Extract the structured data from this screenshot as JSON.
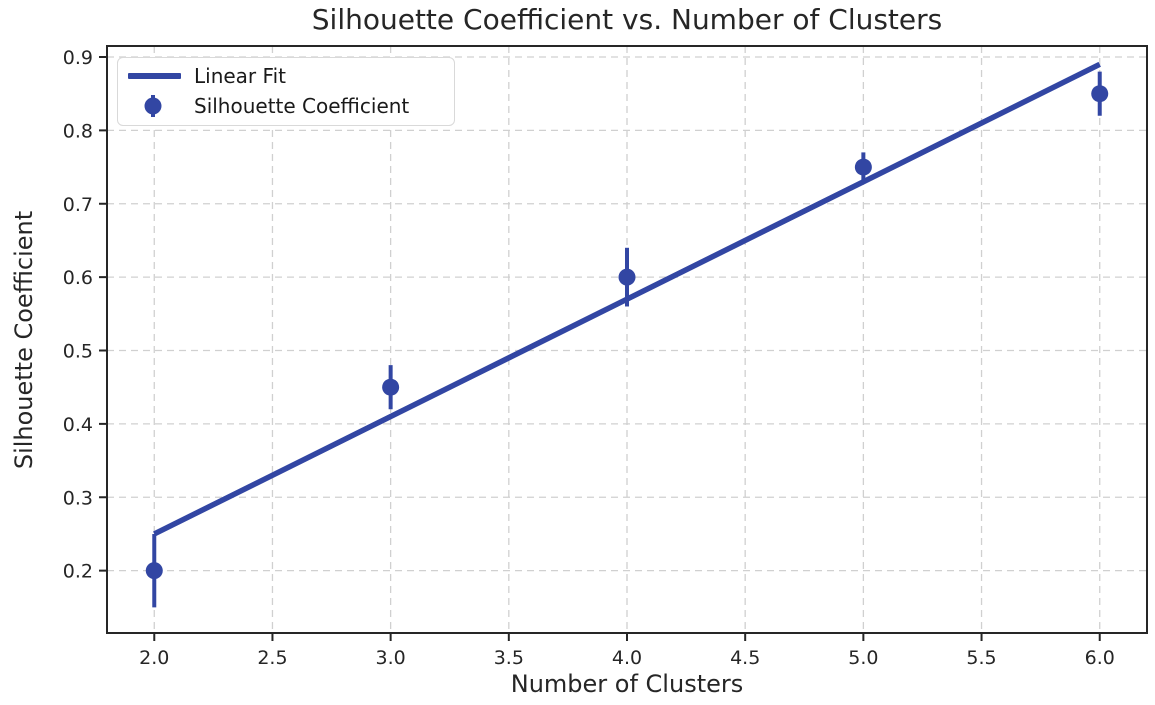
{
  "chart_data": {
    "type": "scatter",
    "title": "Silhouette Coefficient vs. Number of Clusters",
    "xlabel": "Number of Clusters",
    "ylabel": "Silhouette Coefficient",
    "series": [
      {
        "name": "Linear Fit",
        "style": "line",
        "x": [
          2.0,
          6.0
        ],
        "y": [
          0.25,
          0.89
        ]
      },
      {
        "name": "Silhouette Coefficient",
        "style": "scatter-errorbar",
        "x": [
          2,
          3,
          4,
          5,
          6
        ],
        "y": [
          0.2,
          0.45,
          0.6,
          0.75,
          0.85
        ],
        "yerr": [
          0.05,
          0.03,
          0.04,
          0.02,
          0.03
        ]
      }
    ],
    "xlim": [
      1.8,
      6.2
    ],
    "ylim": [
      0.115,
      0.915
    ],
    "xticks": [
      "2.0",
      "2.5",
      "3.0",
      "3.5",
      "4.0",
      "4.5",
      "5.0",
      "5.5",
      "6.0"
    ],
    "yticks": [
      "0.2",
      "0.3",
      "0.4",
      "0.5",
      "0.6",
      "0.7",
      "0.8",
      "0.9"
    ],
    "grid": "dashed",
    "legend_position": "upper-left",
    "colors": {
      "accent": "#3246a3",
      "grid": "#d0d0d0",
      "axis": "#262626",
      "text": "#262626"
    }
  },
  "legend": {
    "items": [
      {
        "label": "Linear Fit",
        "swatch": "line"
      },
      {
        "label": "Silhouette Coefficient",
        "swatch": "errorbar-marker"
      }
    ]
  }
}
